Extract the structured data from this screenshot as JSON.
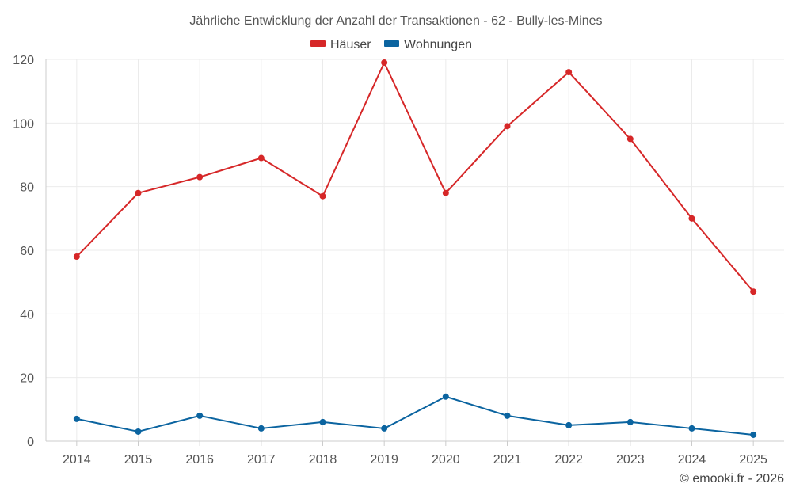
{
  "chart_data": {
    "type": "line",
    "title": "Jährliche Entwicklung der Anzahl der Transaktionen - 62 - Bully-les-Mines",
    "categories": [
      "2014",
      "2015",
      "2016",
      "2017",
      "2018",
      "2019",
      "2020",
      "2021",
      "2022",
      "2023",
      "2024",
      "2025"
    ],
    "series": [
      {
        "name": "Häuser",
        "color": "#d62728",
        "values": [
          58,
          78,
          83,
          89,
          77,
          119,
          78,
          99,
          116,
          95,
          70,
          47
        ]
      },
      {
        "name": "Wohnungen",
        "color": "#0b64a0",
        "values": [
          7,
          3,
          8,
          4,
          6,
          4,
          14,
          8,
          5,
          6,
          4,
          2
        ]
      }
    ],
    "ylim": [
      0,
      120
    ],
    "yticks": [
      "0",
      "20",
      "40",
      "60",
      "80",
      "100",
      "120"
    ],
    "xlabel": "",
    "ylabel": "",
    "grid": true,
    "legend_position": "top-center"
  },
  "credit": "© emooki.fr - 2026"
}
